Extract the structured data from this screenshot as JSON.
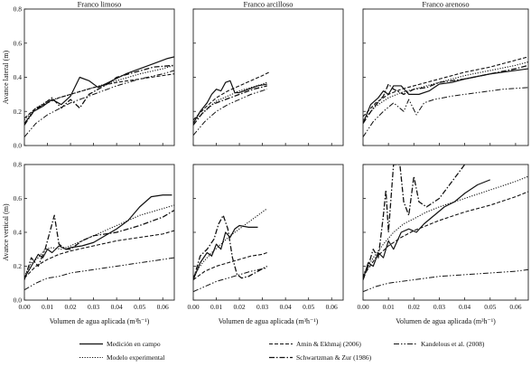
{
  "chart_data": {
    "type": "line",
    "columns": [
      "Franco limoso",
      "Franco arcilloso",
      "Franco arenoso"
    ],
    "xlabel": "Volumen de agua aplicada (m³h⁻¹)",
    "ylabels": [
      "Avance lateral (m)",
      "Avance vertical (m)"
    ],
    "xlim": [
      0,
      0.065
    ],
    "ylim": [
      0,
      0.8
    ],
    "xticks": [
      "0.00",
      "0.01",
      "0.02",
      "0.03",
      "0.04",
      "0.05",
      "0.06"
    ],
    "yticks": [
      "0.0",
      "0.2",
      "0.4",
      "0.6",
      "0.8"
    ],
    "legend": [
      {
        "label": "Medición en campo",
        "style": "solid"
      },
      {
        "label": "Modelo experimental",
        "style": "dotted"
      },
      {
        "label": "Amin & Ekhmaj (2006)",
        "style": "dashed"
      },
      {
        "label": "Schwartzman & Zur (1986)",
        "style": "dashdot"
      },
      {
        "label": "Kandelous et al. (2008)",
        "style": "dashdotdot"
      }
    ],
    "panels": [
      {
        "row": "lateral",
        "column": "Franco limoso",
        "series": [
          {
            "style": "solid",
            "x": [
              0.0,
              0.004,
              0.008,
              0.012,
              0.016,
              0.02,
              0.024,
              0.028,
              0.032,
              0.038,
              0.044,
              0.05,
              0.056,
              0.062,
              0.065
            ],
            "y": [
              0.13,
              0.2,
              0.23,
              0.27,
              0.24,
              0.29,
              0.4,
              0.38,
              0.34,
              0.38,
              0.42,
              0.45,
              0.48,
              0.51,
              0.52
            ]
          },
          {
            "style": "dotted",
            "x": [
              0.0,
              0.005,
              0.01,
              0.015,
              0.02,
              0.03,
              0.04,
              0.05,
              0.06,
              0.065
            ],
            "y": [
              0.15,
              0.22,
              0.26,
              0.28,
              0.3,
              0.34,
              0.38,
              0.42,
              0.45,
              0.47
            ]
          },
          {
            "style": "dashed",
            "x": [
              0.0,
              0.005,
              0.01,
              0.015,
              0.02,
              0.03,
              0.04,
              0.05,
              0.06,
              0.065
            ],
            "y": [
              0.16,
              0.22,
              0.25,
              0.28,
              0.3,
              0.34,
              0.37,
              0.39,
              0.41,
              0.42
            ]
          },
          {
            "style": "dashdot",
            "x": [
              0.0,
              0.004,
              0.008,
              0.012,
              0.016,
              0.02,
              0.024,
              0.028,
              0.032,
              0.036,
              0.04,
              0.048,
              0.056,
              0.065
            ],
            "y": [
              0.12,
              0.2,
              0.24,
              0.28,
              0.22,
              0.27,
              0.22,
              0.3,
              0.33,
              0.36,
              0.4,
              0.43,
              0.46,
              0.47
            ]
          },
          {
            "style": "dashdotdot",
            "x": [
              0.0,
              0.005,
              0.01,
              0.02,
              0.03,
              0.04,
              0.05,
              0.06,
              0.065
            ],
            "y": [
              0.05,
              0.13,
              0.18,
              0.25,
              0.3,
              0.35,
              0.39,
              0.42,
              0.44
            ]
          }
        ]
      },
      {
        "row": "lateral",
        "column": "Franco arcilloso",
        "series": [
          {
            "style": "solid",
            "x": [
              0.0,
              0.003,
              0.006,
              0.008,
              0.01,
              0.012,
              0.014,
              0.016,
              0.018,
              0.02,
              0.024,
              0.028,
              0.032
            ],
            "y": [
              0.13,
              0.2,
              0.25,
              0.3,
              0.33,
              0.32,
              0.37,
              0.38,
              0.31,
              0.31,
              0.33,
              0.35,
              0.36
            ]
          },
          {
            "style": "dotted",
            "x": [
              0.0,
              0.005,
              0.01,
              0.015,
              0.02,
              0.025,
              0.03,
              0.032
            ],
            "y": [
              0.14,
              0.2,
              0.26,
              0.29,
              0.32,
              0.34,
              0.36,
              0.37
            ]
          },
          {
            "style": "dashed",
            "x": [
              0.0,
              0.005,
              0.01,
              0.015,
              0.02,
              0.025,
              0.03,
              0.033
            ],
            "y": [
              0.15,
              0.22,
              0.28,
              0.32,
              0.35,
              0.38,
              0.41,
              0.43
            ]
          },
          {
            "style": "dashdot",
            "x": [
              0.0,
              0.004,
              0.008,
              0.012,
              0.016,
              0.02,
              0.026,
              0.032
            ],
            "y": [
              0.12,
              0.19,
              0.24,
              0.26,
              0.28,
              0.3,
              0.33,
              0.35
            ]
          },
          {
            "style": "dashdotdot",
            "x": [
              0.0,
              0.005,
              0.01,
              0.015,
              0.02,
              0.025,
              0.032
            ],
            "y": [
              0.06,
              0.14,
              0.2,
              0.24,
              0.27,
              0.3,
              0.33
            ]
          }
        ]
      },
      {
        "row": "lateral",
        "column": "Franco arenoso",
        "series": [
          {
            "style": "solid",
            "x": [
              0.0,
              0.003,
              0.006,
              0.008,
              0.01,
              0.012,
              0.015,
              0.018,
              0.022,
              0.026,
              0.03,
              0.035,
              0.04,
              0.05,
              0.06,
              0.065
            ],
            "y": [
              0.13,
              0.24,
              0.28,
              0.32,
              0.3,
              0.35,
              0.35,
              0.3,
              0.3,
              0.32,
              0.36,
              0.37,
              0.39,
              0.42,
              0.44,
              0.45
            ]
          },
          {
            "style": "dotted",
            "x": [
              0.0,
              0.005,
              0.01,
              0.015,
              0.02,
              0.03,
              0.04,
              0.05,
              0.06,
              0.065
            ],
            "y": [
              0.15,
              0.23,
              0.28,
              0.31,
              0.33,
              0.37,
              0.41,
              0.44,
              0.47,
              0.49
            ]
          },
          {
            "style": "dashed",
            "x": [
              0.0,
              0.005,
              0.01,
              0.015,
              0.02,
              0.03,
              0.04,
              0.05,
              0.06,
              0.065
            ],
            "y": [
              0.17,
              0.25,
              0.3,
              0.33,
              0.35,
              0.39,
              0.43,
              0.46,
              0.5,
              0.52
            ]
          },
          {
            "style": "dashdot",
            "x": [
              0.0,
              0.004,
              0.008,
              0.01,
              0.012,
              0.016,
              0.02,
              0.025,
              0.03,
              0.04,
              0.05,
              0.06,
              0.065
            ],
            "y": [
              0.13,
              0.22,
              0.29,
              0.36,
              0.33,
              0.3,
              0.33,
              0.34,
              0.37,
              0.39,
              0.42,
              0.45,
              0.47
            ]
          },
          {
            "style": "dashdotdot",
            "x": [
              0.0,
              0.004,
              0.008,
              0.012,
              0.016,
              0.018,
              0.021,
              0.024,
              0.028,
              0.035,
              0.045,
              0.055,
              0.065
            ],
            "y": [
              0.05,
              0.14,
              0.2,
              0.25,
              0.2,
              0.27,
              0.18,
              0.25,
              0.27,
              0.29,
              0.31,
              0.33,
              0.34
            ]
          }
        ]
      },
      {
        "row": "vertical",
        "column": "Franco limoso",
        "series": [
          {
            "style": "solid",
            "x": [
              0.0,
              0.003,
              0.006,
              0.008,
              0.01,
              0.012,
              0.015,
              0.018,
              0.02,
              0.025,
              0.03,
              0.035,
              0.04,
              0.045,
              0.05,
              0.055,
              0.06,
              0.064
            ],
            "y": [
              0.13,
              0.2,
              0.27,
              0.25,
              0.3,
              0.28,
              0.32,
              0.3,
              0.31,
              0.32,
              0.34,
              0.38,
              0.42,
              0.47,
              0.55,
              0.61,
              0.62,
              0.62
            ]
          },
          {
            "style": "dotted",
            "x": [
              0.0,
              0.003,
              0.006,
              0.009,
              0.012,
              0.016,
              0.02,
              0.025,
              0.03,
              0.04,
              0.05,
              0.06,
              0.065
            ],
            "y": [
              0.14,
              0.22,
              0.25,
              0.3,
              0.31,
              0.3,
              0.32,
              0.35,
              0.38,
              0.44,
              0.5,
              0.54,
              0.56
            ]
          },
          {
            "style": "dashed",
            "x": [
              0.0,
              0.005,
              0.01,
              0.015,
              0.02,
              0.03,
              0.04,
              0.05,
              0.06,
              0.065
            ],
            "y": [
              0.13,
              0.2,
              0.24,
              0.27,
              0.29,
              0.32,
              0.35,
              0.37,
              0.39,
              0.41
            ]
          },
          {
            "style": "dashdot",
            "x": [
              0.0,
              0.003,
              0.006,
              0.009,
              0.011,
              0.013,
              0.015,
              0.018,
              0.02,
              0.025,
              0.03,
              0.04,
              0.05,
              0.06,
              0.065
            ],
            "y": [
              0.12,
              0.25,
              0.2,
              0.3,
              0.4,
              0.5,
              0.33,
              0.3,
              0.3,
              0.35,
              0.38,
              0.4,
              0.44,
              0.49,
              0.53
            ]
          },
          {
            "style": "dashdotdot",
            "x": [
              0.0,
              0.005,
              0.01,
              0.015,
              0.02,
              0.03,
              0.04,
              0.05,
              0.06,
              0.065
            ],
            "y": [
              0.06,
              0.1,
              0.13,
              0.14,
              0.16,
              0.18,
              0.2,
              0.22,
              0.24,
              0.25
            ]
          }
        ]
      },
      {
        "row": "vertical",
        "column": "Franco arcilloso",
        "series": [
          {
            "style": "solid",
            "x": [
              0.0,
              0.003,
              0.006,
              0.008,
              0.01,
              0.012,
              0.014,
              0.016,
              0.018,
              0.02,
              0.024,
              0.028
            ],
            "y": [
              0.12,
              0.22,
              0.28,
              0.26,
              0.33,
              0.3,
              0.4,
              0.37,
              0.42,
              0.44,
              0.43,
              0.43
            ]
          },
          {
            "style": "dotted",
            "x": [
              0.0,
              0.004,
              0.008,
              0.012,
              0.016,
              0.02,
              0.024,
              0.028,
              0.032
            ],
            "y": [
              0.14,
              0.22,
              0.28,
              0.33,
              0.38,
              0.42,
              0.46,
              0.5,
              0.54
            ]
          },
          {
            "style": "dashed",
            "x": [
              0.0,
              0.005,
              0.01,
              0.015,
              0.02,
              0.025,
              0.03,
              0.032
            ],
            "y": [
              0.12,
              0.17,
              0.2,
              0.22,
              0.24,
              0.26,
              0.27,
              0.28
            ]
          },
          {
            "style": "dashdot",
            "x": [
              0.0,
              0.003,
              0.006,
              0.009,
              0.011,
              0.013,
              0.015,
              0.017,
              0.019,
              0.021,
              0.024,
              0.028,
              0.032
            ],
            "y": [
              0.12,
              0.26,
              0.3,
              0.36,
              0.45,
              0.5,
              0.42,
              0.25,
              0.15,
              0.13,
              0.14,
              0.17,
              0.2
            ]
          },
          {
            "style": "dashdotdot",
            "x": [
              0.0,
              0.005,
              0.01,
              0.015,
              0.02,
              0.025,
              0.032
            ],
            "y": [
              0.05,
              0.08,
              0.11,
              0.13,
              0.15,
              0.17,
              0.19
            ]
          }
        ]
      },
      {
        "row": "vertical",
        "column": "Franco arenoso",
        "series": [
          {
            "style": "solid",
            "x": [
              0.0,
              0.002,
              0.004,
              0.006,
              0.008,
              0.01,
              0.012,
              0.015,
              0.018,
              0.021,
              0.024,
              0.028,
              0.032,
              0.036,
              0.04,
              0.045,
              0.05
            ],
            "y": [
              0.12,
              0.22,
              0.2,
              0.28,
              0.25,
              0.35,
              0.3,
              0.4,
              0.42,
              0.4,
              0.45,
              0.5,
              0.55,
              0.58,
              0.63,
              0.68,
              0.71
            ]
          },
          {
            "style": "dotted",
            "x": [
              0.0,
              0.004,
              0.008,
              0.012,
              0.016,
              0.02,
              0.025,
              0.03,
              0.04,
              0.05,
              0.06,
              0.065
            ],
            "y": [
              0.15,
              0.25,
              0.33,
              0.4,
              0.45,
              0.48,
              0.52,
              0.55,
              0.6,
              0.65,
              0.7,
              0.73
            ]
          },
          {
            "style": "dashed",
            "x": [
              0.0,
              0.005,
              0.01,
              0.015,
              0.02,
              0.03,
              0.04,
              0.05,
              0.06,
              0.065
            ],
            "y": [
              0.14,
              0.25,
              0.32,
              0.37,
              0.41,
              0.47,
              0.52,
              0.56,
              0.61,
              0.64
            ]
          },
          {
            "style": "dashdot",
            "x": [
              0.0,
              0.002,
              0.004,
              0.006,
              0.008,
              0.009,
              0.01,
              0.011,
              0.012,
              0.013,
              0.0145,
              0.016,
              0.018,
              0.02,
              0.022,
              0.025,
              0.03,
              0.035,
              0.04
            ],
            "y": [
              0.12,
              0.2,
              0.3,
              0.25,
              0.5,
              0.65,
              0.4,
              0.6,
              0.8,
              0.8,
              0.8,
              0.58,
              0.5,
              0.73,
              0.58,
              0.55,
              0.6,
              0.7,
              0.8
            ]
          },
          {
            "style": "dashdotdot",
            "x": [
              0.0,
              0.005,
              0.01,
              0.02,
              0.03,
              0.04,
              0.05,
              0.06,
              0.065
            ],
            "y": [
              0.05,
              0.08,
              0.1,
              0.12,
              0.14,
              0.15,
              0.16,
              0.17,
              0.18
            ]
          }
        ]
      }
    ]
  }
}
